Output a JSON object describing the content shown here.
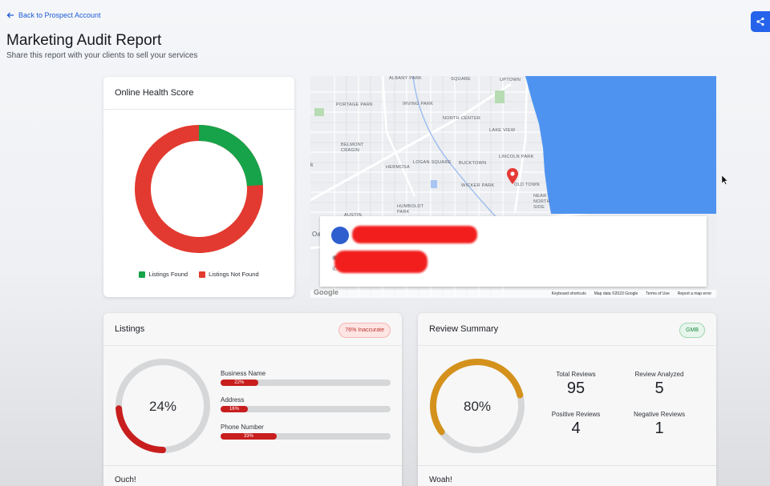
{
  "header": {
    "back_label": "Back to Prospect Account",
    "title": "Marketing Audit Report",
    "subtitle": "Share this report with your clients to sell your services"
  },
  "health": {
    "title": "Online Health Score",
    "found_pct": 24,
    "legend": [
      {
        "label": "Listings Found",
        "color": "#16a34a"
      },
      {
        "label": "Listings Not Found",
        "color": "#e23a30"
      }
    ]
  },
  "map": {
    "labels": [
      "ALBANY PARK",
      "SQUARE",
      "UPTOWN",
      "PORTAGE PARK",
      "IRVING PARK",
      "NORTH CENTER",
      "LAKE VIEW",
      "BELMONT CRAGIN",
      "HERMOSA",
      "LOGAN SQUARE",
      "BUCKTOWN",
      "LINCOLN PARK",
      "WICKER PARK",
      "OLD TOWN",
      "NEAR NORTH SIDE",
      "HUMBOLDT PARK",
      "AUSTIN",
      "Oa",
      "k"
    ],
    "footer": [
      "Keyboard shortcuts",
      "Map data ©2023 Google",
      "Terms of Use",
      "Report a map error"
    ],
    "logo": "Google"
  },
  "listings": {
    "title": "Listings",
    "badge": "76% Inaccurate",
    "gauge_value": 24,
    "gauge_label": "24%",
    "rows": [
      {
        "name": "Business Name",
        "pct": 22,
        "pct_label": "22%"
      },
      {
        "name": "Address",
        "pct": 16,
        "pct_label": "16%"
      },
      {
        "name": "Phone Number",
        "pct": 33,
        "pct_label": "33%"
      }
    ],
    "footer": "Ouch!"
  },
  "reviews": {
    "title": "Review Summary",
    "badge": "GMB",
    "gauge_value": 80,
    "gauge_label": "80%",
    "stats": {
      "total_label": "Total Reviews",
      "total_value": "95",
      "analyzed_label": "Review Analyzed",
      "analyzed_value": "5",
      "positive_label": "Positive Reviews",
      "positive_value": "4",
      "negative_label": "Negative Reviews",
      "negative_value": "1"
    },
    "footer": "Woah!"
  }
}
